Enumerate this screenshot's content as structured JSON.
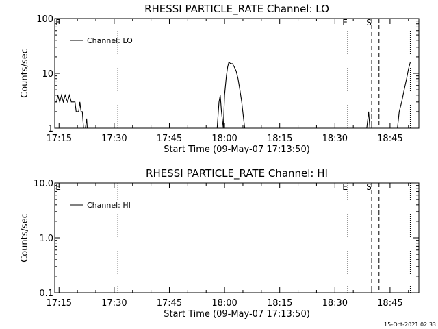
{
  "footer": {
    "timestamp": "15-Oct-2021 02:33"
  },
  "chart_data": [
    {
      "type": "line",
      "title": "RHESSI PARTICLE_RATE Channel: LO",
      "xlabel": "Start Time (09-May-07 17:13:50)",
      "ylabel": "Counts/sec",
      "x_ticks": [
        "17:15",
        "17:30",
        "17:45",
        "18:00",
        "18:15",
        "18:30",
        "18:45"
      ],
      "x_range": [
        "17:13:50",
        "18:52:50"
      ],
      "y_scale": "log",
      "ylim": [
        1,
        100
      ],
      "y_ticks": [
        "1",
        "10",
        "100"
      ],
      "legend": {
        "position": "top-left",
        "entries": [
          "Channel: LO"
        ]
      },
      "markers": [
        {
          "time": "17:31:00",
          "style": "dotted",
          "label": ""
        },
        {
          "time": "18:33:30",
          "style": "dotted",
          "label": "E"
        },
        {
          "time": "18:40:00",
          "style": "dashed",
          "label": "S"
        },
        {
          "time": "18:42:00",
          "style": "dashed",
          "label": ""
        },
        {
          "time": "18:50:30",
          "style": "dotted",
          "label": ""
        }
      ],
      "corner_label": "E",
      "series": [
        {
          "name": "Channel: LO",
          "segments": [
            [
              [
                "17:13:50",
                3
              ],
              [
                "17:14:20",
                3
              ],
              [
                "17:14:40",
                4
              ],
              [
                "17:15:10",
                3
              ],
              [
                "17:15:40",
                4
              ],
              [
                "17:16:10",
                3
              ],
              [
                "17:16:40",
                4
              ],
              [
                "17:17:20",
                3
              ],
              [
                "17:17:50",
                4
              ],
              [
                "17:18:20",
                3
              ],
              [
                "17:18:50",
                3
              ],
              [
                "17:19:20",
                3
              ],
              [
                "17:19:40",
                2
              ],
              [
                "17:20:20",
                2
              ],
              [
                "17:20:40",
                3
              ],
              [
                "17:21:00",
                2
              ],
              [
                "17:21:20",
                2
              ],
              [
                "17:21:40",
                1
              ],
              [
                "17:22:10",
                1
              ],
              [
                "17:22:30",
                1.5
              ],
              [
                "17:22:40",
                1
              ]
            ],
            [
              [
                "17:58:00",
                1
              ],
              [
                "17:58:30",
                3
              ],
              [
                "17:58:50",
                4
              ],
              [
                "17:59:10",
                2
              ],
              [
                "17:59:40",
                1
              ]
            ],
            [
              [
                "17:59:40",
                1
              ],
              [
                "18:00:00",
                4
              ],
              [
                "18:00:30",
                9
              ],
              [
                "18:00:50",
                13
              ],
              [
                "18:01:10",
                16
              ],
              [
                "18:01:40",
                15
              ],
              [
                "18:02:10",
                15
              ],
              [
                "18:02:40",
                13
              ],
              [
                "18:03:10",
                11
              ],
              [
                "18:03:40",
                8
              ],
              [
                "18:04:10",
                5
              ],
              [
                "18:04:40",
                3
              ],
              [
                "18:05:10",
                1.5
              ],
              [
                "18:05:30",
                1
              ]
            ],
            [
              [
                "18:38:40",
                1
              ],
              [
                "18:39:10",
                2
              ],
              [
                "18:39:30",
                1
              ]
            ],
            [
              [
                "18:47:00",
                1
              ],
              [
                "18:47:30",
                2
              ],
              [
                "18:48:10",
                3
              ],
              [
                "18:48:50",
                5
              ],
              [
                "18:49:30",
                8
              ],
              [
                "18:50:00",
                12
              ],
              [
                "18:50:30",
                16
              ]
            ]
          ]
        }
      ]
    },
    {
      "type": "line",
      "title": "RHESSI PARTICLE_RATE Channel: HI",
      "xlabel": "Start Time (09-May-07 17:13:50)",
      "ylabel": "Counts/sec",
      "x_ticks": [
        "17:15",
        "17:30",
        "17:45",
        "18:00",
        "18:15",
        "18:30",
        "18:45"
      ],
      "x_range": [
        "17:13:50",
        "18:52:50"
      ],
      "y_scale": "log",
      "ylim": [
        0.1,
        10
      ],
      "y_ticks": [
        "0.1",
        "1.0",
        "10.0"
      ],
      "legend": {
        "position": "top-left",
        "entries": [
          "Channel: HI"
        ]
      },
      "markers": [
        {
          "time": "17:31:00",
          "style": "dotted",
          "label": ""
        },
        {
          "time": "18:33:30",
          "style": "dotted",
          "label": "E"
        },
        {
          "time": "18:40:00",
          "style": "dashed",
          "label": "S"
        },
        {
          "time": "18:42:00",
          "style": "dashed",
          "label": ""
        },
        {
          "time": "18:50:30",
          "style": "dotted",
          "label": ""
        }
      ],
      "corner_label": "E",
      "series": [
        {
          "name": "Channel: HI",
          "segments": []
        }
      ]
    }
  ]
}
